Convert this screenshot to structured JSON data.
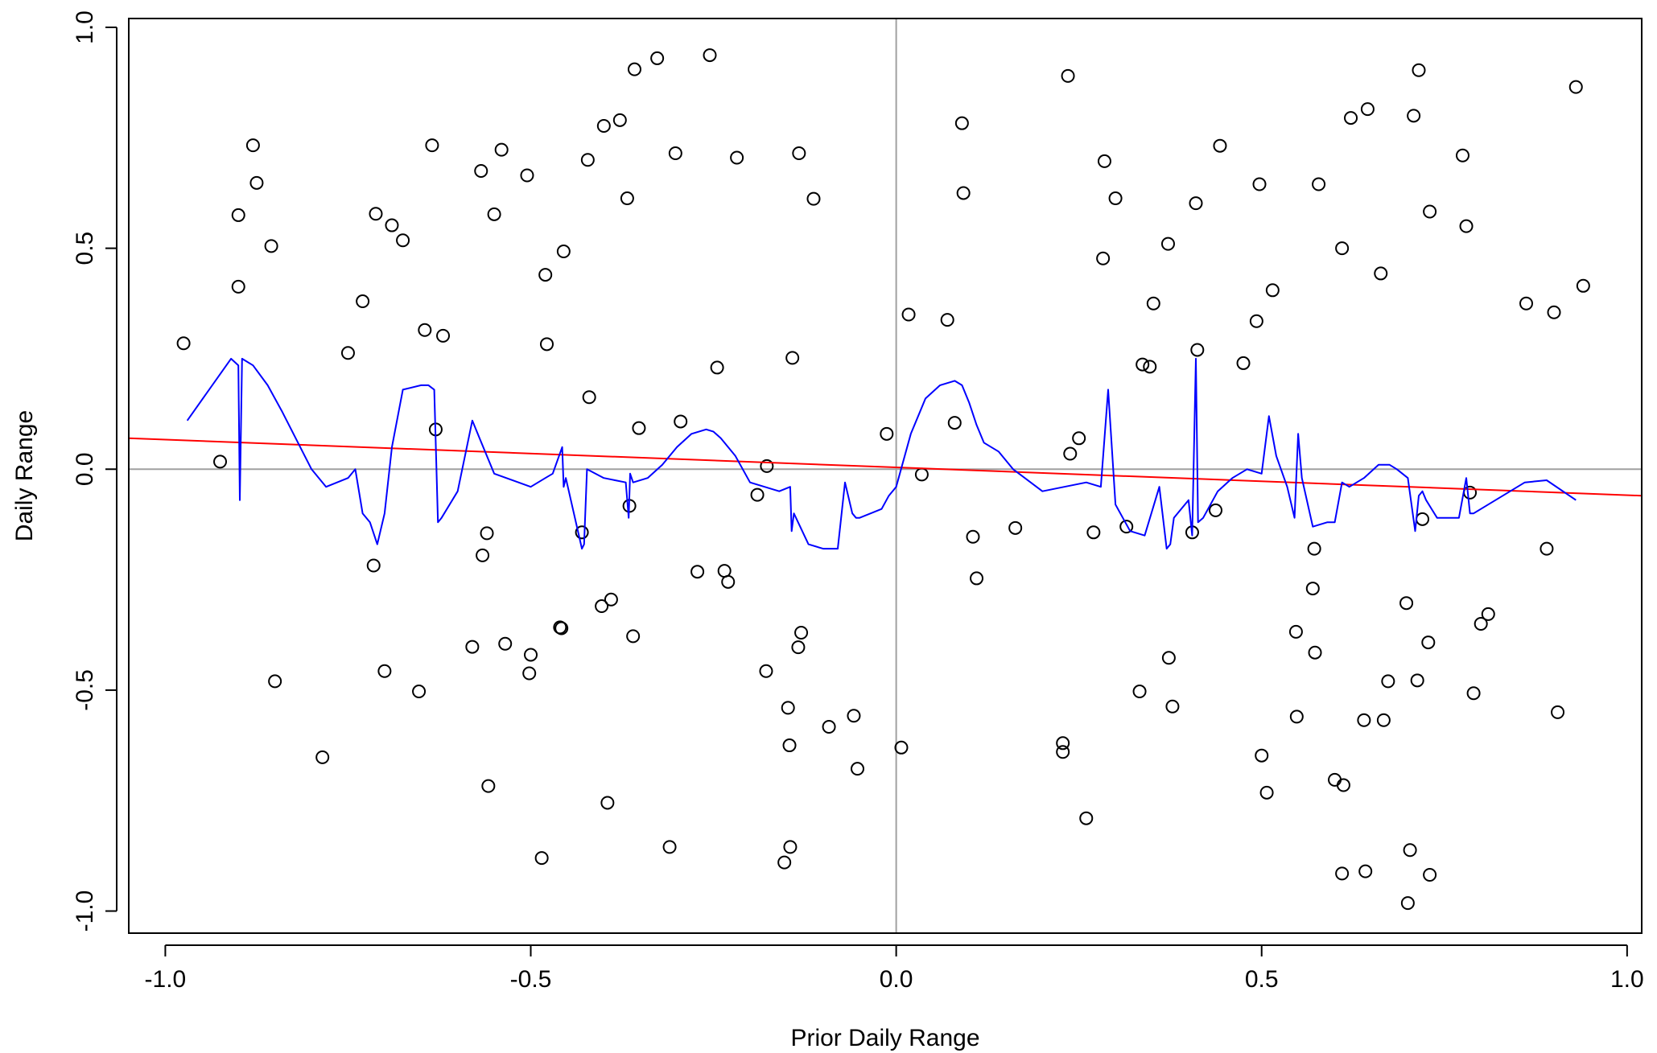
{
  "chart_data": {
    "type": "scatter",
    "title": "",
    "xlabel": "Prior Daily Range",
    "ylabel": "Daily Range",
    "xlim": [
      -1.05,
      1.02
    ],
    "ylim": [
      -1.05,
      1.02
    ],
    "x_ticks": [
      -1.0,
      -0.5,
      0.0,
      0.5,
      1.0
    ],
    "x_tick_labels": [
      "-1.0",
      "-0.5",
      "0.0",
      "0.5",
      "1.0"
    ],
    "y_ticks": [
      -1.0,
      -0.5,
      0.0,
      0.5,
      1.0
    ],
    "y_tick_labels": [
      "-1.0",
      "-0.5",
      "0.0",
      "0.5",
      "1.0"
    ],
    "grid": false,
    "reference_lines": [
      {
        "orientation": "vertical",
        "value": 0.0,
        "color": "#a0a0a0"
      },
      {
        "orientation": "horizontal",
        "value": 0.0,
        "color": "#a0a0a0"
      }
    ],
    "colors": {
      "points": "#000000",
      "linear_fit": "#ff0000",
      "smooth_fit": "#0000ff"
    },
    "points": [
      [
        -0.975,
        0.285
      ],
      [
        -0.925,
        0.017
      ],
      [
        -0.9,
        0.575
      ],
      [
        -0.9,
        0.413
      ],
      [
        -0.88,
        0.733
      ],
      [
        -0.875,
        0.648
      ],
      [
        -0.855,
        0.505
      ],
      [
        -0.85,
        -0.48
      ],
      [
        -0.785,
        -0.652
      ],
      [
        -0.75,
        0.263
      ],
      [
        -0.73,
        0.38
      ],
      [
        -0.715,
        -0.218
      ],
      [
        -0.712,
        0.578
      ],
      [
        -0.7,
        -0.457
      ],
      [
        -0.69,
        0.552
      ],
      [
        -0.675,
        0.518
      ],
      [
        -0.653,
        -0.503
      ],
      [
        -0.645,
        0.315
      ],
      [
        -0.635,
        0.733
      ],
      [
        -0.63,
        0.09
      ],
      [
        -0.62,
        0.302
      ],
      [
        -0.58,
        -0.402
      ],
      [
        -0.568,
        0.675
      ],
      [
        -0.566,
        -0.195
      ],
      [
        -0.56,
        -0.145
      ],
      [
        -0.558,
        -0.717
      ],
      [
        -0.55,
        0.577
      ],
      [
        -0.54,
        0.723
      ],
      [
        -0.535,
        -0.395
      ],
      [
        -0.505,
        0.665
      ],
      [
        -0.502,
        -0.462
      ],
      [
        -0.5,
        -0.42
      ],
      [
        -0.485,
        -0.88
      ],
      [
        -0.48,
        0.44
      ],
      [
        -0.478,
        0.283
      ],
      [
        -0.46,
        -0.358
      ],
      [
        -0.458,
        -0.36
      ],
      [
        -0.455,
        0.493
      ],
      [
        -0.43,
        -0.143
      ],
      [
        -0.422,
        0.7
      ],
      [
        -0.42,
        0.163
      ],
      [
        -0.403,
        -0.31
      ],
      [
        -0.4,
        0.777
      ],
      [
        -0.395,
        -0.755
      ],
      [
        -0.39,
        -0.295
      ],
      [
        -0.378,
        0.79
      ],
      [
        -0.368,
        0.613
      ],
      [
        -0.365,
        -0.083
      ],
      [
        -0.36,
        -0.378
      ],
      [
        -0.358,
        0.905
      ],
      [
        -0.352,
        0.093
      ],
      [
        -0.327,
        0.93
      ],
      [
        -0.31,
        -0.855
      ],
      [
        -0.302,
        0.715
      ],
      [
        -0.295,
        0.108
      ],
      [
        -0.272,
        -0.232
      ],
      [
        -0.255,
        0.937
      ],
      [
        -0.245,
        0.23
      ],
      [
        -0.235,
        -0.23
      ],
      [
        -0.23,
        -0.255
      ],
      [
        -0.218,
        0.705
      ],
      [
        -0.19,
        -0.058
      ],
      [
        -0.178,
        -0.457
      ],
      [
        -0.177,
        0.007
      ],
      [
        -0.153,
        -0.89
      ],
      [
        -0.148,
        -0.54
      ],
      [
        -0.146,
        -0.625
      ],
      [
        -0.145,
        -0.855
      ],
      [
        -0.142,
        0.252
      ],
      [
        -0.134,
        -0.403
      ],
      [
        -0.133,
        0.715
      ],
      [
        -0.13,
        -0.37
      ],
      [
        -0.113,
        0.612
      ],
      [
        -0.092,
        -0.583
      ],
      [
        -0.058,
        -0.558
      ],
      [
        -0.053,
        -0.678
      ],
      [
        -0.013,
        0.08
      ],
      [
        0.007,
        -0.63
      ],
      [
        0.017,
        0.35
      ],
      [
        0.035,
        -0.012
      ],
      [
        0.07,
        0.338
      ],
      [
        0.08,
        0.105
      ],
      [
        0.09,
        0.783
      ],
      [
        0.092,
        0.625
      ],
      [
        0.105,
        -0.153
      ],
      [
        0.11,
        -0.247
      ],
      [
        0.163,
        -0.133
      ],
      [
        0.228,
        -0.62
      ],
      [
        0.228,
        -0.64
      ],
      [
        0.235,
        0.89
      ],
      [
        0.238,
        0.035
      ],
      [
        0.25,
        0.07
      ],
      [
        0.26,
        -0.79
      ],
      [
        0.27,
        -0.143
      ],
      [
        0.283,
        0.477
      ],
      [
        0.285,
        0.697
      ],
      [
        0.3,
        0.613
      ],
      [
        0.315,
        -0.13
      ],
      [
        0.333,
        -0.503
      ],
      [
        0.337,
        0.237
      ],
      [
        0.347,
        0.232
      ],
      [
        0.352,
        0.375
      ],
      [
        0.372,
        0.51
      ],
      [
        0.373,
        -0.427
      ],
      [
        0.378,
        -0.537
      ],
      [
        0.405,
        -0.143
      ],
      [
        0.41,
        0.602
      ],
      [
        0.412,
        0.27
      ],
      [
        0.437,
        -0.093
      ],
      [
        0.443,
        0.732
      ],
      [
        0.475,
        0.24
      ],
      [
        0.493,
        0.335
      ],
      [
        0.497,
        0.645
      ],
      [
        0.5,
        -0.648
      ],
      [
        0.507,
        -0.732
      ],
      [
        0.515,
        0.405
      ],
      [
        0.547,
        -0.368
      ],
      [
        0.548,
        -0.56
      ],
      [
        0.57,
        -0.27
      ],
      [
        0.572,
        -0.18
      ],
      [
        0.573,
        -0.415
      ],
      [
        0.578,
        0.645
      ],
      [
        0.6,
        -0.703
      ],
      [
        0.61,
        -0.915
      ],
      [
        0.61,
        0.5
      ],
      [
        0.612,
        -0.715
      ],
      [
        0.622,
        0.795
      ],
      [
        0.64,
        -0.568
      ],
      [
        0.642,
        -0.91
      ],
      [
        0.645,
        0.815
      ],
      [
        0.663,
        0.443
      ],
      [
        0.667,
        -0.568
      ],
      [
        0.673,
        -0.48
      ],
      [
        0.698,
        -0.303
      ],
      [
        0.7,
        -0.982
      ],
      [
        0.703,
        -0.862
      ],
      [
        0.708,
        0.8
      ],
      [
        0.713,
        -0.478
      ],
      [
        0.715,
        0.903
      ],
      [
        0.72,
        -0.113
      ],
      [
        0.728,
        -0.392
      ],
      [
        0.73,
        0.583
      ],
      [
        0.73,
        -0.918
      ],
      [
        0.775,
        0.71
      ],
      [
        0.78,
        0.55
      ],
      [
        0.785,
        -0.053
      ],
      [
        0.79,
        -0.507
      ],
      [
        0.8,
        -0.35
      ],
      [
        0.81,
        -0.328
      ],
      [
        0.862,
        0.375
      ],
      [
        0.89,
        -0.18
      ],
      [
        0.9,
        0.355
      ],
      [
        0.905,
        -0.55
      ],
      [
        0.93,
        0.865
      ],
      [
        0.94,
        0.415
      ]
    ],
    "linear_fit": {
      "x": [
        -1.05,
        1.02
      ],
      "y": [
        0.07,
        -0.06
      ]
    },
    "smooth_fit": {
      "x": [
        -0.97,
        -0.91,
        -0.9,
        -0.898,
        -0.895,
        -0.88,
        -0.86,
        -0.84,
        -0.8,
        -0.78,
        -0.75,
        -0.74,
        -0.73,
        -0.72,
        -0.71,
        -0.7,
        -0.69,
        -0.675,
        -0.65,
        -0.64,
        -0.632,
        -0.627,
        -0.622,
        -0.6,
        -0.58,
        -0.57,
        -0.55,
        -0.5,
        -0.48,
        -0.47,
        -0.457,
        -0.455,
        -0.452,
        -0.43,
        -0.427,
        -0.423,
        -0.4,
        -0.37,
        -0.366,
        -0.364,
        -0.36,
        -0.34,
        -0.32,
        -0.3,
        -0.28,
        -0.26,
        -0.25,
        -0.24,
        -0.22,
        -0.2,
        -0.18,
        -0.16,
        -0.145,
        -0.143,
        -0.14,
        -0.12,
        -0.1,
        -0.08,
        -0.07,
        -0.06,
        -0.055,
        -0.05,
        -0.02,
        -0.01,
        0.0,
        0.02,
        0.04,
        0.06,
        0.08,
        0.09,
        0.1,
        0.11,
        0.12,
        0.14,
        0.16,
        0.2,
        0.23,
        0.26,
        0.28,
        0.29,
        0.3,
        0.31,
        0.32,
        0.34,
        0.36,
        0.37,
        0.375,
        0.38,
        0.4,
        0.405,
        0.41,
        0.413,
        0.42,
        0.44,
        0.46,
        0.48,
        0.5,
        0.51,
        0.52,
        0.535,
        0.545,
        0.55,
        0.555,
        0.57,
        0.59,
        0.6,
        0.61,
        0.62,
        0.64,
        0.66,
        0.675,
        0.685,
        0.7,
        0.71,
        0.715,
        0.72,
        0.725,
        0.74,
        0.77,
        0.78,
        0.785,
        0.79,
        0.8,
        0.86,
        0.89,
        0.93
      ],
      "y": [
        0.11,
        0.25,
        0.235,
        -0.07,
        0.25,
        0.235,
        0.19,
        0.13,
        0.0,
        -0.04,
        -0.02,
        0.0,
        -0.1,
        -0.12,
        -0.17,
        -0.1,
        0.05,
        0.18,
        0.19,
        0.19,
        0.18,
        -0.12,
        -0.11,
        -0.05,
        0.11,
        0.07,
        -0.01,
        -0.04,
        -0.02,
        -0.01,
        0.05,
        -0.04,
        -0.02,
        -0.18,
        -0.17,
        0.0,
        -0.02,
        -0.03,
        -0.11,
        -0.01,
        -0.03,
        -0.02,
        0.01,
        0.05,
        0.08,
        0.09,
        0.085,
        0.07,
        0.03,
        -0.03,
        -0.04,
        -0.05,
        -0.04,
        -0.14,
        -0.1,
        -0.17,
        -0.18,
        -0.18,
        -0.03,
        -0.1,
        -0.11,
        -0.11,
        -0.09,
        -0.06,
        -0.04,
        0.08,
        0.16,
        0.19,
        0.2,
        0.19,
        0.15,
        0.1,
        0.06,
        0.04,
        0.0,
        -0.05,
        -0.04,
        -0.03,
        -0.04,
        0.18,
        -0.08,
        -0.11,
        -0.14,
        -0.15,
        -0.04,
        -0.18,
        -0.17,
        -0.11,
        -0.07,
        -0.15,
        0.25,
        -0.12,
        -0.11,
        -0.05,
        -0.02,
        0.0,
        -0.01,
        0.12,
        0.03,
        -0.04,
        -0.11,
        0.08,
        -0.02,
        -0.13,
        -0.12,
        -0.12,
        -0.03,
        -0.04,
        -0.02,
        0.01,
        0.01,
        0.0,
        -0.02,
        -0.14,
        -0.06,
        -0.05,
        -0.07,
        -0.11,
        -0.11,
        -0.02,
        -0.1,
        -0.1,
        -0.09,
        -0.03,
        -0.025,
        -0.07
      ]
    }
  }
}
